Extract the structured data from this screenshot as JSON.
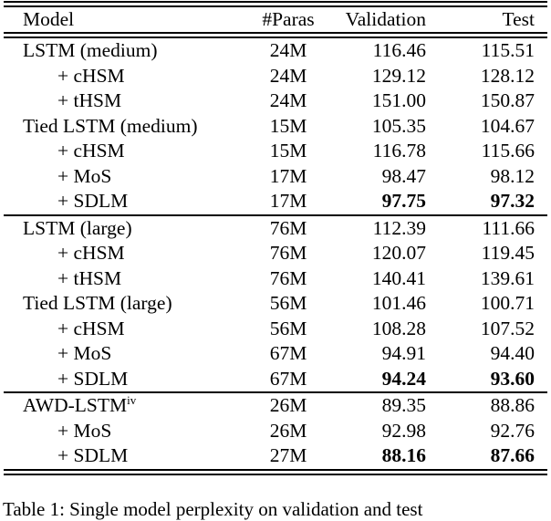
{
  "page": {
    "background_color": "#ffffff",
    "text_color": "#000000",
    "rule_color": "#000000"
  },
  "table": {
    "columns": [
      {
        "label": "Model"
      },
      {
        "label": "#Paras"
      },
      {
        "label": "Validation"
      },
      {
        "label": "Test"
      }
    ],
    "sections": [
      {
        "rows": [
          {
            "model": "LSTM (medium)",
            "indent": false,
            "paras": "24M",
            "validation": "116.46",
            "test": "115.51",
            "bold": false
          },
          {
            "model": "+ cHSM",
            "indent": true,
            "paras": "24M",
            "validation": "129.12",
            "test": "128.12",
            "bold": false
          },
          {
            "model": "+ tHSM",
            "indent": true,
            "paras": "24M",
            "validation": "151.00",
            "test": "150.87",
            "bold": false
          },
          {
            "model": "Tied LSTM (medium)",
            "indent": false,
            "paras": "15M",
            "validation": "105.35",
            "test": "104.67",
            "bold": false
          },
          {
            "model": "+ cHSM",
            "indent": true,
            "paras": "15M",
            "validation": "116.78",
            "test": "115.66",
            "bold": false
          },
          {
            "model": "+ MoS",
            "indent": true,
            "paras": "17M",
            "validation": "98.47",
            "test": "98.12",
            "bold": false
          },
          {
            "model": "+ SDLM",
            "indent": true,
            "paras": "17M",
            "validation": "97.75",
            "test": "97.32",
            "bold": true
          }
        ]
      },
      {
        "rows": [
          {
            "model": "LSTM (large)",
            "indent": false,
            "paras": "76M",
            "validation": "112.39",
            "test": "111.66",
            "bold": false
          },
          {
            "model": "+ cHSM",
            "indent": true,
            "paras": "76M",
            "validation": "120.07",
            "test": "119.45",
            "bold": false
          },
          {
            "model": "+ tHSM",
            "indent": true,
            "paras": "76M",
            "validation": "140.41",
            "test": "139.61",
            "bold": false
          },
          {
            "model": "Tied LSTM (large)",
            "indent": false,
            "paras": "56M",
            "validation": "101.46",
            "test": "100.71",
            "bold": false
          },
          {
            "model": "+ cHSM",
            "indent": true,
            "paras": "56M",
            "validation": "108.28",
            "test": "107.52",
            "bold": false
          },
          {
            "model": "+ MoS",
            "indent": true,
            "paras": "67M",
            "validation": "94.91",
            "test": "94.40",
            "bold": false
          },
          {
            "model": "+ SDLM",
            "indent": true,
            "paras": "67M",
            "validation": "94.24",
            "test": "93.60",
            "bold": true
          }
        ]
      },
      {
        "rows": [
          {
            "model": "AWD-LSTM",
            "superscript": "iv",
            "indent": false,
            "paras": "26M",
            "validation": "89.35",
            "test": "88.86",
            "bold": false
          },
          {
            "model": "+ MoS",
            "indent": true,
            "paras": "26M",
            "validation": "92.98",
            "test": "92.76",
            "bold": false
          },
          {
            "model": "+ SDLM",
            "indent": true,
            "paras": "27M",
            "validation": "88.16",
            "test": "87.66",
            "bold": true
          }
        ]
      }
    ],
    "caption": "Table 1: Single model perplexity on validation and test"
  }
}
